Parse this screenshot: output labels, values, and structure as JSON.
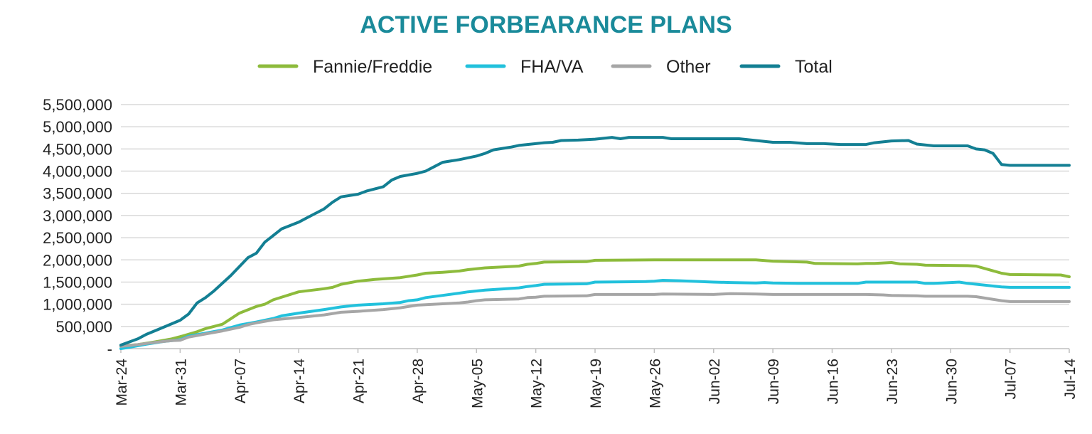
{
  "chart_data": {
    "type": "line",
    "title": "ACTIVE FORBEARANCE PLANS",
    "xlabel": "",
    "ylabel": "",
    "ylim": [
      0,
      5500000
    ],
    "yticks": [
      0,
      500000,
      1000000,
      1500000,
      2000000,
      2500000,
      3000000,
      3500000,
      4000000,
      4500000,
      5000000,
      5500000
    ],
    "ytick_labels": [
      "-",
      "500,000",
      "1,000,000",
      "1,500,000",
      "2,000,000",
      "2,500,000",
      "3,000,000",
      "3,500,000",
      "4,000,000",
      "4,500,000",
      "5,000,000",
      "5,500,000"
    ],
    "xlim": [
      0,
      112
    ],
    "xtick_positions": [
      0,
      7,
      14,
      21,
      28,
      35,
      42,
      49,
      56,
      63,
      70,
      77,
      84,
      91,
      98,
      105,
      112
    ],
    "xtick_labels": [
      "Mar-24",
      "Mar-31",
      "Apr-07",
      "Apr-14",
      "Apr-21",
      "Apr-28",
      "May-05",
      "May-12",
      "May-19",
      "May-26",
      "Jun-02",
      "Jun-09",
      "Jun-16",
      "Jun-23",
      "Jun-30",
      "Jul-07",
      "Jul-14"
    ],
    "legend_position": "top-center",
    "grid": true,
    "series": [
      {
        "name": "Fannie/Freddie",
        "color": "#8dbb3c",
        "points": [
          [
            0,
            60000
          ],
          [
            2,
            90000
          ],
          [
            4,
            150000
          ],
          [
            6,
            220000
          ],
          [
            7,
            270000
          ],
          [
            9,
            380000
          ],
          [
            10,
            450000
          ],
          [
            12,
            550000
          ],
          [
            14,
            800000
          ],
          [
            16,
            950000
          ],
          [
            17,
            1000000
          ],
          [
            18,
            1100000
          ],
          [
            21,
            1280000
          ],
          [
            24,
            1350000
          ],
          [
            25,
            1380000
          ],
          [
            26,
            1450000
          ],
          [
            28,
            1520000
          ],
          [
            30,
            1560000
          ],
          [
            33,
            1600000
          ],
          [
            35,
            1660000
          ],
          [
            36,
            1700000
          ],
          [
            38,
            1720000
          ],
          [
            40,
            1750000
          ],
          [
            41,
            1780000
          ],
          [
            42,
            1800000
          ],
          [
            43,
            1820000
          ],
          [
            47,
            1860000
          ],
          [
            48,
            1900000
          ],
          [
            49,
            1920000
          ],
          [
            50,
            1950000
          ],
          [
            55,
            1960000
          ],
          [
            56,
            1990000
          ],
          [
            63,
            2000000
          ],
          [
            70,
            2000000
          ],
          [
            73,
            2000000
          ],
          [
            75,
            2000000
          ],
          [
            77,
            1970000
          ],
          [
            79,
            1960000
          ],
          [
            81,
            1950000
          ],
          [
            82,
            1920000
          ],
          [
            87,
            1910000
          ],
          [
            88,
            1920000
          ],
          [
            89,
            1920000
          ],
          [
            90,
            1930000
          ],
          [
            91,
            1940000
          ],
          [
            92,
            1910000
          ],
          [
            94,
            1900000
          ],
          [
            95,
            1880000
          ],
          [
            100,
            1870000
          ],
          [
            101,
            1860000
          ],
          [
            104,
            1700000
          ],
          [
            105,
            1670000
          ],
          [
            111,
            1660000
          ],
          [
            112,
            1620000
          ]
        ]
      },
      {
        "name": "FHA/VA",
        "color": "#22c1dc",
        "points": [
          [
            0,
            0
          ],
          [
            1,
            30000
          ],
          [
            3,
            100000
          ],
          [
            5,
            160000
          ],
          [
            7,
            200000
          ],
          [
            8,
            280000
          ],
          [
            10,
            350000
          ],
          [
            12,
            420000
          ],
          [
            14,
            530000
          ],
          [
            16,
            600000
          ],
          [
            18,
            680000
          ],
          [
            19,
            740000
          ],
          [
            21,
            800000
          ],
          [
            24,
            880000
          ],
          [
            26,
            940000
          ],
          [
            28,
            980000
          ],
          [
            31,
            1010000
          ],
          [
            33,
            1040000
          ],
          [
            34,
            1080000
          ],
          [
            35,
            1100000
          ],
          [
            36,
            1150000
          ],
          [
            38,
            1200000
          ],
          [
            40,
            1250000
          ],
          [
            41,
            1280000
          ],
          [
            43,
            1320000
          ],
          [
            47,
            1370000
          ],
          [
            48,
            1400000
          ],
          [
            49,
            1420000
          ],
          [
            50,
            1450000
          ],
          [
            55,
            1460000
          ],
          [
            56,
            1500000
          ],
          [
            62,
            1510000
          ],
          [
            63,
            1520000
          ],
          [
            64,
            1540000
          ],
          [
            66,
            1530000
          ],
          [
            70,
            1500000
          ],
          [
            72,
            1490000
          ],
          [
            75,
            1480000
          ],
          [
            76,
            1490000
          ],
          [
            77,
            1480000
          ],
          [
            80,
            1470000
          ],
          [
            85,
            1470000
          ],
          [
            87,
            1470000
          ],
          [
            88,
            1500000
          ],
          [
            94,
            1500000
          ],
          [
            95,
            1470000
          ],
          [
            96,
            1470000
          ],
          [
            97,
            1480000
          ],
          [
            99,
            1500000
          ],
          [
            100,
            1470000
          ],
          [
            104,
            1390000
          ],
          [
            105,
            1380000
          ],
          [
            111,
            1380000
          ],
          [
            112,
            1380000
          ]
        ]
      },
      {
        "name": "Other",
        "color": "#a6a6a6",
        "points": [
          [
            0,
            50000
          ],
          [
            2,
            90000
          ],
          [
            4,
            140000
          ],
          [
            6,
            180000
          ],
          [
            7,
            190000
          ],
          [
            8,
            260000
          ],
          [
            10,
            330000
          ],
          [
            12,
            400000
          ],
          [
            14,
            480000
          ],
          [
            15,
            540000
          ],
          [
            16,
            580000
          ],
          [
            18,
            650000
          ],
          [
            21,
            700000
          ],
          [
            24,
            760000
          ],
          [
            26,
            820000
          ],
          [
            28,
            840000
          ],
          [
            31,
            880000
          ],
          [
            33,
            920000
          ],
          [
            35,
            980000
          ],
          [
            37,
            1000000
          ],
          [
            38,
            1010000
          ],
          [
            40,
            1030000
          ],
          [
            41,
            1050000
          ],
          [
            42,
            1080000
          ],
          [
            43,
            1100000
          ],
          [
            47,
            1120000
          ],
          [
            48,
            1150000
          ],
          [
            49,
            1160000
          ],
          [
            50,
            1180000
          ],
          [
            55,
            1190000
          ],
          [
            56,
            1220000
          ],
          [
            62,
            1220000
          ],
          [
            63,
            1220000
          ],
          [
            64,
            1230000
          ],
          [
            70,
            1220000
          ],
          [
            71,
            1230000
          ],
          [
            72,
            1240000
          ],
          [
            75,
            1230000
          ],
          [
            77,
            1220000
          ],
          [
            80,
            1220000
          ],
          [
            85,
            1220000
          ],
          [
            87,
            1220000
          ],
          [
            88,
            1220000
          ],
          [
            90,
            1210000
          ],
          [
            91,
            1200000
          ],
          [
            94,
            1190000
          ],
          [
            95,
            1180000
          ],
          [
            100,
            1180000
          ],
          [
            101,
            1170000
          ],
          [
            104,
            1080000
          ],
          [
            105,
            1060000
          ],
          [
            111,
            1060000
          ],
          [
            112,
            1060000
          ]
        ]
      },
      {
        "name": "Total",
        "color": "#137f93",
        "points": [
          [
            0,
            80000
          ],
          [
            1,
            150000
          ],
          [
            2,
            220000
          ],
          [
            3,
            320000
          ],
          [
            5,
            480000
          ],
          [
            7,
            640000
          ],
          [
            8,
            780000
          ],
          [
            9,
            1030000
          ],
          [
            10,
            1150000
          ],
          [
            11,
            1300000
          ],
          [
            13,
            1650000
          ],
          [
            14,
            1850000
          ],
          [
            15,
            2050000
          ],
          [
            16,
            2150000
          ],
          [
            17,
            2400000
          ],
          [
            18,
            2550000
          ],
          [
            19,
            2700000
          ],
          [
            21,
            2850000
          ],
          [
            22,
            2950000
          ],
          [
            24,
            3150000
          ],
          [
            25,
            3300000
          ],
          [
            26,
            3420000
          ],
          [
            28,
            3480000
          ],
          [
            29,
            3550000
          ],
          [
            31,
            3650000
          ],
          [
            32,
            3800000
          ],
          [
            33,
            3880000
          ],
          [
            35,
            3950000
          ],
          [
            36,
            4000000
          ],
          [
            37,
            4100000
          ],
          [
            38,
            4200000
          ],
          [
            40,
            4260000
          ],
          [
            42,
            4340000
          ],
          [
            43,
            4400000
          ],
          [
            44,
            4480000
          ],
          [
            46,
            4540000
          ],
          [
            47,
            4580000
          ],
          [
            49,
            4620000
          ],
          [
            50,
            4640000
          ],
          [
            51,
            4650000
          ],
          [
            52,
            4690000
          ],
          [
            54,
            4700000
          ],
          [
            56,
            4720000
          ],
          [
            57,
            4740000
          ],
          [
            58,
            4760000
          ],
          [
            59,
            4730000
          ],
          [
            60,
            4760000
          ],
          [
            62,
            4760000
          ],
          [
            63,
            4760000
          ],
          [
            64,
            4760000
          ],
          [
            65,
            4730000
          ],
          [
            70,
            4730000
          ],
          [
            72,
            4730000
          ],
          [
            73,
            4730000
          ],
          [
            75,
            4690000
          ],
          [
            77,
            4650000
          ],
          [
            79,
            4650000
          ],
          [
            81,
            4620000
          ],
          [
            83,
            4620000
          ],
          [
            85,
            4600000
          ],
          [
            88,
            4600000
          ],
          [
            89,
            4640000
          ],
          [
            90,
            4660000
          ],
          [
            91,
            4680000
          ],
          [
            93,
            4690000
          ],
          [
            94,
            4610000
          ],
          [
            95,
            4590000
          ],
          [
            96,
            4570000
          ],
          [
            100,
            4570000
          ],
          [
            101,
            4500000
          ],
          [
            102,
            4480000
          ],
          [
            103,
            4400000
          ],
          [
            104,
            4150000
          ],
          [
            105,
            4130000
          ],
          [
            111,
            4130000
          ],
          [
            112,
            4130000
          ]
        ]
      }
    ]
  }
}
